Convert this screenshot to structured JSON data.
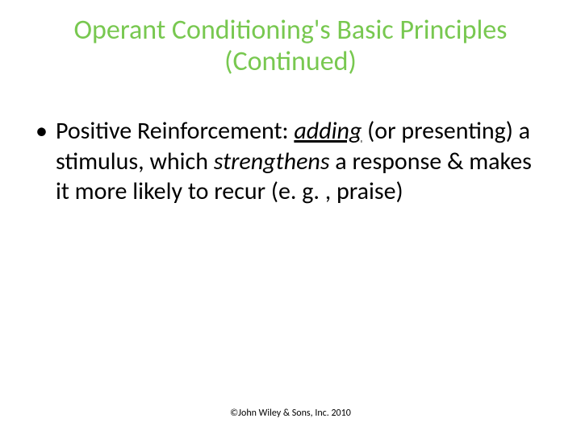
{
  "title_color": "#78c850",
  "title_line1": "Operant Conditioning's Basic Principles",
  "title_line2": "(Continued)",
  "bullet_char": "•",
  "term": "Positive Reinforcement:",
  "word_adding": "adding",
  "segment_or_presenting": " (or presenting) a stimulus, which ",
  "word_strengthens": "strengthens",
  "segment_tail": " a response & makes it more likely to recur (e. g. , praise)",
  "footer": "©John Wiley & Sons, Inc. 2010",
  "title_fontsize": 34,
  "body_fontsize": 30,
  "footer_fontsize": 12,
  "background_color": "#ffffff",
  "body_color": "#000000"
}
